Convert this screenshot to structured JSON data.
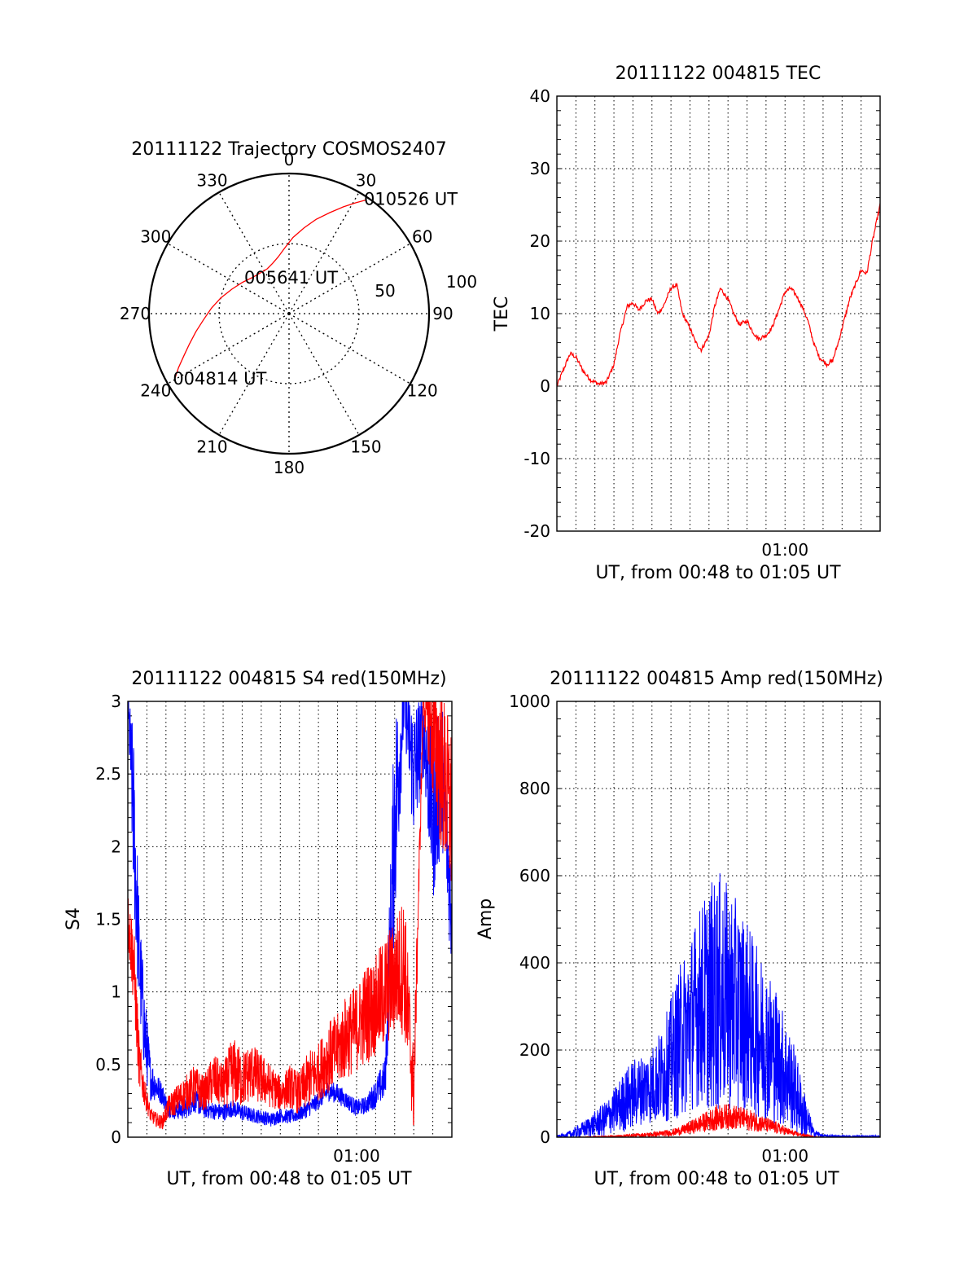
{
  "colors": {
    "red": "#ff0000",
    "blue": "#0000ff",
    "axis": "#000000",
    "grid": "#000000"
  },
  "chart_data": [
    {
      "type": "scatter",
      "subtype": "polar-trajectory",
      "title": "20111122 Trajectory COSMOS2407",
      "azimuth_labels": [
        "0",
        "30",
        "60",
        "90",
        "120",
        "150",
        "180",
        "210",
        "240",
        "270",
        "300",
        "330"
      ],
      "radial_labels": [
        "50",
        "100"
      ],
      "start_label": "004814 UT",
      "mid_label": "005641 UT",
      "end_label": "010526 UT",
      "trajectory": {
        "color": "red",
        "azimuth_deg": [
          240,
          244,
          248,
          253,
          259,
          266,
          274,
          283,
          293,
          304,
          315,
          325,
          334,
          342,
          349,
          356,
          3,
          10,
          16,
          22,
          27,
          31,
          34
        ],
        "elevation_deg": [
          5,
          11,
          17,
          23,
          29,
          35,
          40,
          45,
          50,
          54,
          57,
          58,
          58,
          56,
          53,
          48,
          41,
          34,
          27,
          20,
          13,
          7,
          2
        ]
      }
    },
    {
      "type": "line",
      "title": "20111122 004815 TEC",
      "xlabel": "UT, from 00:48 to 01:05 UT",
      "ylabel": "TEC",
      "xlim": [
        0,
        17
      ],
      "ylim": [
        -20,
        40
      ],
      "yticks": [
        -20,
        -10,
        0,
        10,
        20,
        30,
        40
      ],
      "xtick_labels": [
        {
          "x": 12,
          "label": "01:00"
        }
      ],
      "grid": true,
      "series": [
        {
          "color": "red",
          "x": [
            0,
            0.3,
            0.7,
            1.0,
            1.4,
            1.8,
            2.2,
            2.6,
            3.0,
            3.3,
            3.7,
            4.0,
            4.3,
            4.7,
            5.0,
            5.3,
            5.6,
            6.0,
            6.3,
            6.6,
            7.0,
            7.3,
            7.6,
            8.0,
            8.3,
            8.6,
            9.0,
            9.3,
            9.6,
            10.0,
            10.3,
            10.6,
            11.0,
            11.3,
            11.6,
            12.0,
            12.3,
            12.6,
            12.9,
            13.2,
            13.5,
            13.8,
            14.2,
            14.5,
            14.8,
            15.1,
            15.4,
            15.7,
            16.0,
            16.3,
            16.6,
            17.0
          ],
          "y": [
            0,
            2,
            4.5,
            4,
            2,
            0.8,
            0.3,
            0.5,
            3,
            7,
            11,
            11.5,
            10.5,
            11.8,
            12,
            10,
            11,
            13.5,
            14,
            10,
            8,
            6,
            5,
            7,
            11,
            13.5,
            12,
            10,
            8.5,
            9,
            7.5,
            6.5,
            7,
            8,
            10,
            13,
            13.5,
            12.5,
            11,
            9,
            6,
            4,
            3,
            3.5,
            6,
            9,
            12,
            14,
            16,
            15.5,
            20,
            25
          ]
        }
      ]
    },
    {
      "type": "line",
      "title": "20111122 004815 S4 red(150MHz)",
      "xlabel": "UT, from 00:48 to 01:05 UT",
      "ylabel": "S4",
      "xlim": [
        0,
        17
      ],
      "ylim": [
        0,
        3
      ],
      "yticks": [
        0,
        0.5,
        1,
        1.5,
        2,
        2.5,
        3
      ],
      "ytick_labels": [
        "0",
        "0.5",
        "1",
        "1.5",
        "2",
        "2.5",
        "3"
      ],
      "xtick_labels": [
        {
          "x": 12,
          "label": "01:00"
        }
      ],
      "grid": true,
      "series": [
        {
          "color": "blue",
          "x": [
            0,
            0.3,
            0.6,
            0.9,
            1.2,
            1.5,
            1.8,
            2.1,
            2.5,
            3.0,
            3.5,
            4.0,
            4.5,
            5.0,
            5.5,
            6.0,
            6.5,
            7.0,
            7.5,
            8.0,
            8.5,
            9.0,
            9.5,
            10.0,
            10.5,
            11.0,
            11.5,
            12.0,
            12.5,
            13.0,
            13.5,
            14.0,
            14.5,
            15.0,
            15.5,
            16.0,
            16.5,
            17.0
          ],
          "y": [
            3,
            2.2,
            1.2,
            0.7,
            0.4,
            0.35,
            0.3,
            0.2,
            0.18,
            0.2,
            0.25,
            0.2,
            0.18,
            0.17,
            0.2,
            0.17,
            0.15,
            0.14,
            0.12,
            0.15,
            0.14,
            0.16,
            0.2,
            0.25,
            0.32,
            0.3,
            0.25,
            0.2,
            0.22,
            0.3,
            0.4,
            2.2,
            3,
            2.5,
            2.8,
            2.2,
            2.5,
            1.5
          ],
          "amplitude": [
            0.1,
            0.6,
            0.4,
            0.3,
            0.15,
            0.1,
            0.08,
            0.06,
            0.06,
            0.08,
            0.08,
            0.07,
            0.06,
            0.06,
            0.06,
            0.06,
            0.05,
            0.05,
            0.05,
            0.05,
            0.05,
            0.05,
            0.06,
            0.06,
            0.07,
            0.07,
            0.06,
            0.06,
            0.06,
            0.1,
            0.15,
            0.8,
            0.2,
            0.5,
            0.3,
            0.6,
            0.5,
            0.4
          ]
        },
        {
          "color": "red",
          "x": [
            0,
            0.3,
            0.6,
            0.9,
            1.2,
            1.5,
            1.8,
            2.1,
            2.5,
            3.0,
            3.5,
            4.0,
            4.5,
            5.0,
            5.5,
            6.0,
            6.5,
            7.0,
            7.5,
            8.0,
            8.5,
            9.0,
            9.5,
            10.0,
            10.5,
            11.0,
            11.5,
            12.0,
            12.5,
            13.0,
            13.5,
            14.0,
            14.5,
            15.0,
            15.5,
            16.0,
            16.5,
            17.0
          ],
          "y": [
            1.5,
            1.2,
            0.5,
            0.3,
            0.15,
            0.12,
            0.1,
            0.2,
            0.25,
            0.3,
            0.35,
            0.3,
            0.4,
            0.35,
            0.45,
            0.4,
            0.45,
            0.4,
            0.35,
            0.3,
            0.35,
            0.3,
            0.4,
            0.45,
            0.55,
            0.6,
            0.7,
            0.75,
            0.85,
            0.9,
            1.0,
            1.1,
            1.2,
            0.3,
            3,
            2.8,
            2.5,
            2.2
          ],
          "amplitude": [
            0.2,
            0.3,
            0.2,
            0.1,
            0.05,
            0.05,
            0.05,
            0.08,
            0.1,
            0.12,
            0.15,
            0.12,
            0.18,
            0.15,
            0.25,
            0.2,
            0.2,
            0.18,
            0.15,
            0.12,
            0.15,
            0.15,
            0.2,
            0.2,
            0.25,
            0.25,
            0.3,
            0.3,
            0.35,
            0.35,
            0.4,
            0.4,
            0.5,
            0.3,
            0.1,
            0.5,
            0.6,
            0.6
          ]
        }
      ]
    },
    {
      "type": "line",
      "title": "20111122 004815 Amp red(150MHz)",
      "xlabel": "UT, from 00:48 to 01:05 UT",
      "ylabel": "Amp",
      "xlim": [
        0,
        17
      ],
      "ylim": [
        0,
        1000
      ],
      "yticks": [
        0,
        200,
        400,
        600,
        800,
        1000
      ],
      "xtick_labels": [
        {
          "x": 12,
          "label": "01:00"
        }
      ],
      "grid": true,
      "series": [
        {
          "color": "blue",
          "x": [
            0,
            0.5,
            1.0,
            1.5,
            2.0,
            2.5,
            3.0,
            3.5,
            4.0,
            4.5,
            5.0,
            5.5,
            6.0,
            6.5,
            7.0,
            7.5,
            8.0,
            8.5,
            9.0,
            9.5,
            10.0,
            10.5,
            11.0,
            11.5,
            12.0,
            12.5,
            13.0,
            13.5,
            14.0,
            15.0,
            16.0,
            17.0
          ],
          "y": [
            2,
            5,
            10,
            20,
            30,
            40,
            60,
            80,
            100,
            110,
            120,
            140,
            180,
            220,
            260,
            300,
            320,
            330,
            320,
            300,
            280,
            240,
            220,
            190,
            150,
            110,
            50,
            10,
            3,
            2,
            2,
            2
          ],
          "amplitude": [
            2,
            5,
            15,
            20,
            30,
            40,
            50,
            70,
            80,
            80,
            90,
            110,
            140,
            180,
            200,
            230,
            260,
            280,
            260,
            240,
            220,
            200,
            180,
            160,
            130,
            100,
            60,
            10,
            3,
            2,
            2,
            2
          ]
        },
        {
          "color": "red",
          "x": [
            0,
            1.0,
            2.0,
            3.0,
            4.0,
            5.0,
            6.0,
            6.5,
            7.0,
            7.5,
            8.0,
            8.5,
            9.0,
            9.5,
            10.0,
            10.5,
            11.0,
            11.5,
            12.0,
            12.5,
            13.0,
            13.5,
            14.0,
            15.0,
            16.0,
            17.0
          ],
          "y": [
            0,
            0,
            1,
            2,
            4,
            6,
            10,
            15,
            22,
            30,
            38,
            45,
            48,
            45,
            40,
            35,
            28,
            22,
            15,
            8,
            4,
            1,
            0,
            0,
            0,
            0
          ],
          "amplitude": [
            0,
            0,
            1,
            2,
            4,
            6,
            8,
            10,
            15,
            20,
            25,
            30,
            30,
            28,
            25,
            22,
            18,
            15,
            10,
            6,
            4,
            1,
            0,
            0,
            0,
            0
          ]
        }
      ]
    }
  ]
}
